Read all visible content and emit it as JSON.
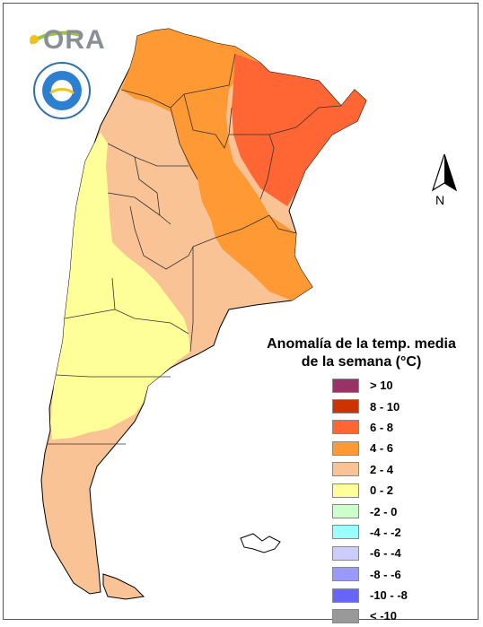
{
  "logo": {
    "text": "ORA"
  },
  "north_arrow": {
    "label": "N"
  },
  "legend": {
    "title_line1": "Anomalía de la temp. media",
    "title_line2": "de la semana (°C)",
    "classes": [
      {
        "label": "> 10",
        "color": "#993366"
      },
      {
        "label": "8 - 10",
        "color": "#cc3300"
      },
      {
        "label": "6 - 8",
        "color": "#ff6633"
      },
      {
        "label": "4 - 6",
        "color": "#ff9933"
      },
      {
        "label": "2 - 4",
        "color": "#f9c396"
      },
      {
        "label": "0 - 2",
        "color": "#ffff99"
      },
      {
        "label": "-2 - 0",
        "color": "#ccffcc"
      },
      {
        "label": "-4 - -2",
        "color": "#99ffff"
      },
      {
        "label": "-6 - -4",
        "color": "#ccccff"
      },
      {
        "label": "-8 - -6",
        "color": "#9999ff"
      },
      {
        "label": "-10 - -8",
        "color": "#6666ff"
      },
      {
        "label": "< -10",
        "color": "#999999"
      }
    ]
  },
  "colors": {
    "class_6_8": "#ff6633",
    "class_4_6": "#ff9933",
    "class_2_4": "#f9c396",
    "class_0_2": "#ffff99",
    "border": "#000000"
  }
}
